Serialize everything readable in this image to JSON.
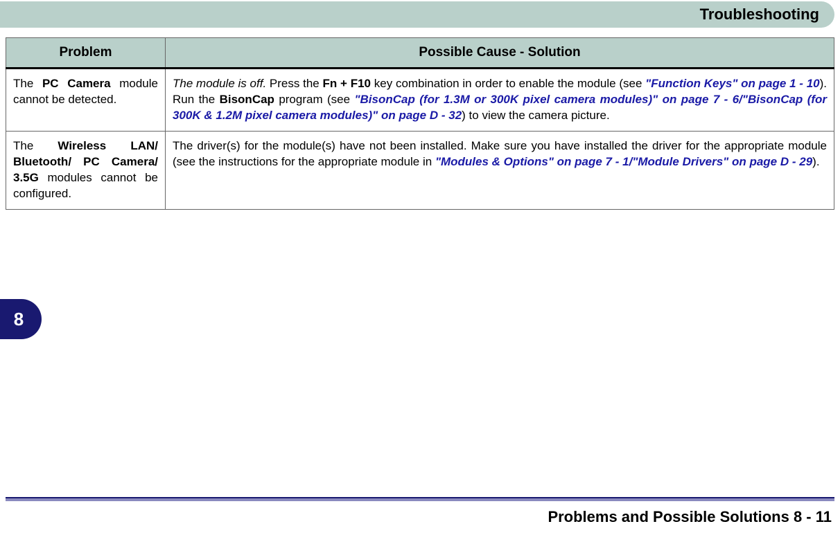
{
  "header": {
    "title": "Troubleshooting"
  },
  "table": {
    "columns": {
      "problem": "Problem",
      "solution": "Possible Cause - Solution"
    },
    "row1": {
      "problem_pre": "The ",
      "problem_bold": "PC Camera",
      "problem_post": " module cannot be detected.",
      "sol_italic1": "The module is off.",
      "sol_t1": " Press the ",
      "sol_b1": "Fn + F10",
      "sol_t2": " key combination in order to enable the module (see ",
      "sol_link1": "\"Function Keys\" on page 1 - 10",
      "sol_t3": "). Run the ",
      "sol_b2": "BisonCap",
      "sol_t4": " program (see ",
      "sol_link2": "\"BisonCap (for 1.3M or 300K pixel camera modules)\" on page 7 - 6",
      "sol_slash": "/",
      "sol_link3": "\"BisonCap (for 300K & 1.2M pixel camera modules)\" on page D - 32",
      "sol_t5": ") to view the camera picture."
    },
    "row2": {
      "problem_pre": "The ",
      "problem_bold": "Wireless LAN/ Bluetooth/ PC Camera/ 3.5G",
      "problem_post": " modules cannot be configured.",
      "sol_t1": "The driver(s) for the module(s) have not been installed. Make sure you have installed the driver for the appropriate module (see the instructions for the appropriate module in ",
      "sol_link1": "\"Modules & Options\" on page 7 - 1",
      "sol_slash": "/",
      "sol_link2": "\"Module Drivers\" on page D - 29",
      "sol_t2": ")."
    }
  },
  "tab": {
    "label": "8"
  },
  "footer": {
    "text": "Problems and Possible Solutions  8  -  11"
  },
  "colors": {
    "header_bg": "#b9d0ca",
    "tab_bg": "#191970",
    "link_color": "#1a1aa6",
    "divider_color": "#8a8abf"
  }
}
